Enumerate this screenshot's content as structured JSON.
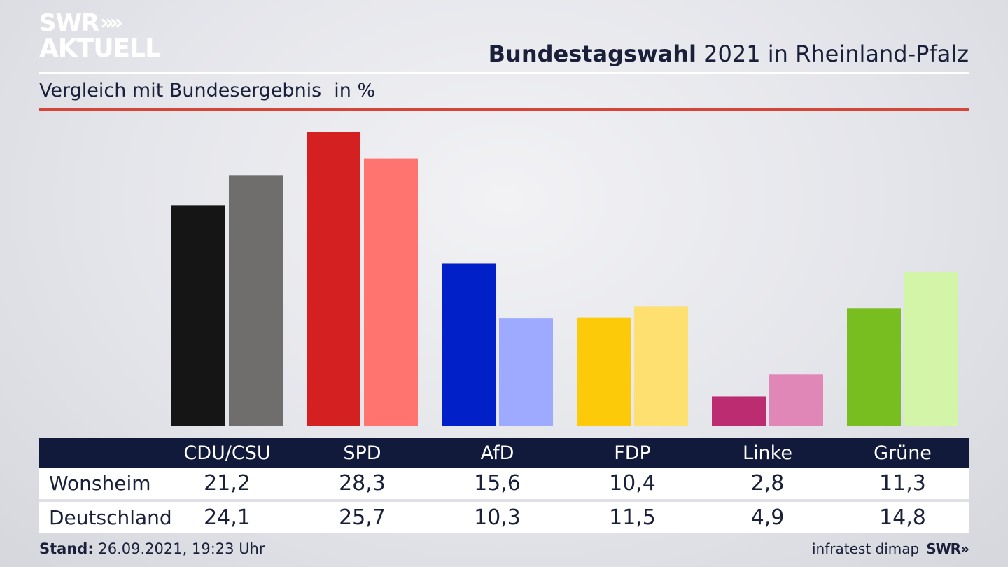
{
  "logo": {
    "line1": "SWR",
    "line2": "AKTUELL",
    "chevrons": "»"
  },
  "header": {
    "title_bold": "Bundestagswahl",
    "title_rest": "2021 in Rheinland-Pfalz"
  },
  "subtitle": {
    "text": "Vergleich mit Bundesergebnis",
    "unit": "in %"
  },
  "table": {
    "rows": [
      {
        "label": "Wonsheim",
        "values": [
          "21,2",
          "28,3",
          "15,6",
          "10,4",
          "2,8",
          "11,3"
        ]
      },
      {
        "label": "Deutschland",
        "values": [
          "24,1",
          "25,7",
          "10,3",
          "11,5",
          "4,9",
          "14,8"
        ]
      }
    ]
  },
  "footer": {
    "stand_label": "Stand:",
    "stand_value": "26.09.2021, 19:23 Uhr",
    "source": "infratest dimap",
    "brand": "SWR»"
  },
  "colors": {
    "local": [
      "#151515",
      "#d42020",
      "#0220c8",
      "#fdca0a",
      "#bb2c71",
      "#79be21"
    ],
    "national": [
      "#706e6c",
      "#ff746e",
      "#9eaaff",
      "#fde070",
      "#e087b8",
      "#d3f5a7"
    ]
  },
  "chart_data": {
    "type": "bar",
    "categories": [
      "CDU/CSU",
      "SPD",
      "AfD",
      "FDP",
      "Linke",
      "Grüne"
    ],
    "series": [
      {
        "name": "Wonsheim",
        "values": [
          21.2,
          28.3,
          15.6,
          10.4,
          2.8,
          11.3
        ]
      },
      {
        "name": "Deutschland",
        "values": [
          24.1,
          25.7,
          10.3,
          11.5,
          4.9,
          14.8
        ]
      }
    ],
    "title": "Bundestagswahl 2021 in Rheinland-Pfalz",
    "subtitle": "Vergleich mit Bundesergebnis",
    "ylabel": "in %",
    "ylim": [
      0,
      28.3
    ],
    "grid": false
  }
}
